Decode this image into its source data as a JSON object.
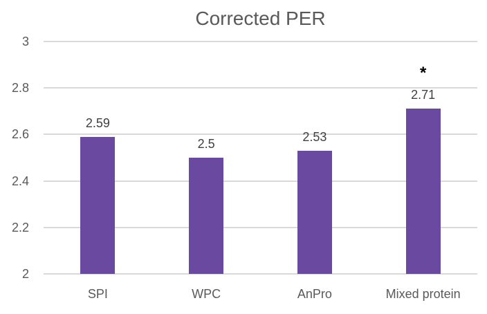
{
  "chart_data": {
    "type": "bar",
    "title": "Corrected PER",
    "categories": [
      "SPI",
      "WPC",
      "AnPro",
      "Mixed protein"
    ],
    "values": [
      2.59,
      2.5,
      2.53,
      2.71
    ],
    "data_labels": [
      "2.59",
      "2.5",
      "2.53",
      "2.71"
    ],
    "annotations": [
      {
        "category": "Mixed protein",
        "text": "*"
      }
    ],
    "xlabel": "",
    "ylabel": "",
    "ylim": [
      2,
      3
    ],
    "yticks": [
      2,
      2.2,
      2.4,
      2.6,
      2.8,
      3
    ],
    "ytick_labels": [
      "2",
      "2.2",
      "2.4",
      "2.6",
      "2.8",
      "3"
    ],
    "grid": true,
    "legend": "none",
    "colors": {
      "bar": "#6A4AA0",
      "gridline": "#D9D9D9",
      "title": "#595959",
      "axis_labels": "#595959",
      "data_labels": "#404040",
      "annotation": "#000000",
      "background": "#FFFFFF"
    }
  }
}
